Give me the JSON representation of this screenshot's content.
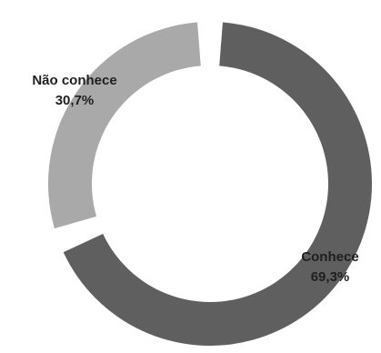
{
  "chart_data": {
    "type": "pie",
    "variant": "doughnut",
    "slices": [
      {
        "label": "Conhece",
        "value": 69.3,
        "value_label": "69,3%",
        "color": "#5f5f5f"
      },
      {
        "label": "Não conhece",
        "value": 30.7,
        "value_label": "30,7%",
        "color": "#a9a9a9"
      }
    ]
  }
}
